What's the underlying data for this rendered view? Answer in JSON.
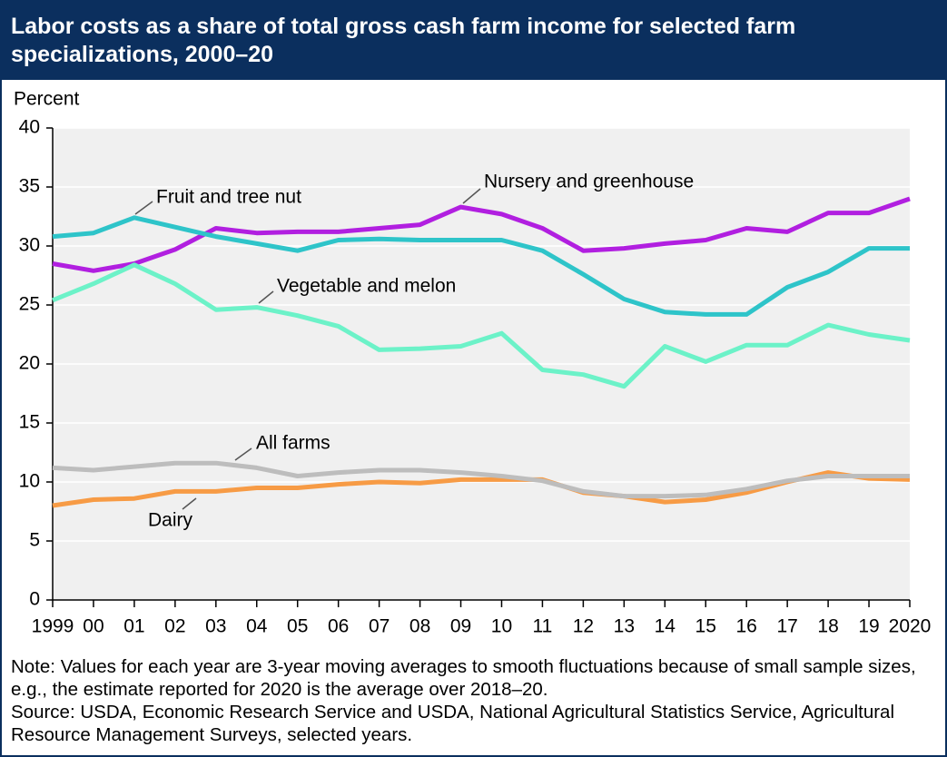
{
  "chart_data": {
    "type": "line",
    "title": "Labor costs as a share of total gross cash farm income for selected farm specializations, 2000–20",
    "y_label": "Percent",
    "categories": [
      "1999",
      "00",
      "01",
      "02",
      "03",
      "04",
      "05",
      "06",
      "07",
      "08",
      "09",
      "10",
      "11",
      "12",
      "13",
      "14",
      "15",
      "16",
      "17",
      "18",
      "19",
      "2020"
    ],
    "ylim": [
      0,
      40
    ],
    "yticks": [
      0,
      5,
      10,
      15,
      20,
      25,
      30,
      35,
      40
    ],
    "grid": true,
    "series": [
      {
        "name": "Nursery and greenhouse",
        "color": "#b11fe0",
        "values": [
          28.5,
          27.9,
          28.5,
          29.7,
          31.5,
          31.1,
          31.2,
          31.2,
          31.5,
          31.8,
          33.3,
          32.7,
          31.5,
          29.6,
          29.8,
          30.2,
          30.5,
          31.5,
          31.2,
          32.8,
          32.8,
          34.0
        ]
      },
      {
        "name": "Fruit and tree nut",
        "color": "#2ec4c9",
        "values": [
          30.8,
          31.1,
          32.4,
          31.6,
          30.8,
          30.2,
          29.6,
          30.5,
          30.6,
          30.5,
          30.5,
          30.5,
          29.6,
          27.6,
          25.5,
          24.4,
          24.2,
          24.2,
          26.5,
          27.8,
          29.8,
          29.8
        ]
      },
      {
        "name": "Vegetable and melon",
        "color": "#6cf2c8",
        "values": [
          25.4,
          26.8,
          28.4,
          26.8,
          24.6,
          24.8,
          24.1,
          23.2,
          21.2,
          21.3,
          21.5,
          22.6,
          19.5,
          19.1,
          18.1,
          21.5,
          20.2,
          21.6,
          21.6,
          23.3,
          22.5,
          22.0
        ]
      },
      {
        "name": "Dairy",
        "color": "#f79b45",
        "values": [
          8.0,
          8.5,
          8.6,
          9.2,
          9.2,
          9.5,
          9.5,
          9.8,
          10.0,
          9.9,
          10.2,
          10.2,
          10.2,
          9.1,
          8.8,
          8.3,
          8.5,
          9.1,
          10.0,
          10.8,
          10.3,
          10.2
        ]
      },
      {
        "name": "All farms",
        "color": "#bdbdbd",
        "values": [
          11.2,
          11.0,
          11.3,
          11.6,
          11.6,
          11.2,
          10.5,
          10.8,
          11.0,
          11.0,
          10.8,
          10.5,
          10.1,
          9.2,
          8.8,
          8.8,
          8.9,
          9.4,
          10.1,
          10.5,
          10.5,
          10.5
        ]
      }
    ],
    "note": "Note: Values for each year are 3-year moving averages to smooth fluctuations because of small sample sizes, e.g., the estimate reported for 2020 is the average over 2018–20.",
    "source": "Source: USDA, Economic Research Service and USDA, National Agricultural Statistics Service, Agricultural Resource Management Surveys, selected years."
  }
}
